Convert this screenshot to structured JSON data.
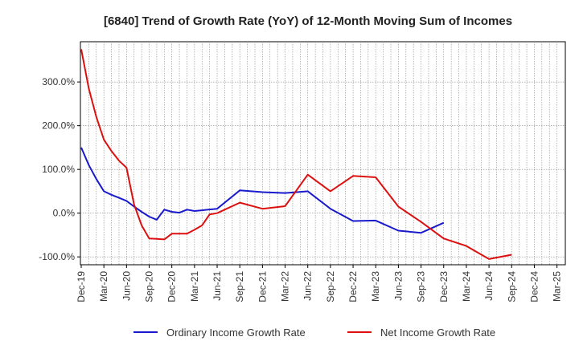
{
  "chart_data": {
    "type": "line",
    "title": "[6840]  Trend of Growth Rate (YoY) of 12-Month Moving Sum of Incomes",
    "xlabel": "",
    "ylabel": "",
    "x_tick_labels": [
      "Dec-19",
      "Mar-20",
      "Jun-20",
      "Sep-20",
      "Dec-20",
      "Mar-21",
      "Jun-21",
      "Sep-21",
      "Dec-21",
      "Mar-22",
      "Jun-22",
      "Sep-22",
      "Dec-22",
      "Mar-23",
      "Jun-23",
      "Sep-23",
      "Dec-23",
      "Mar-24",
      "Jun-24",
      "Sep-24",
      "Dec-24",
      "Mar-25"
    ],
    "y_ticks": [
      {
        "value": 300,
        "label": "300.0%"
      },
      {
        "value": 200,
        "label": "200.0%"
      },
      {
        "value": 100,
        "label": "100.0%"
      },
      {
        "value": 0,
        "label": "0.0%"
      },
      {
        "value": -100,
        "label": "-100.0%"
      }
    ],
    "ylim": [
      -118,
      392
    ],
    "x_range_months": [
      0,
      64
    ],
    "grid": true,
    "legend_position": "bottom",
    "series": [
      {
        "name": "Ordinary Income Growth Rate",
        "color": "#1a1acd",
        "x": [
          0,
          1,
          2,
          3,
          4,
          5,
          6,
          7,
          8,
          9,
          10,
          11,
          12,
          13,
          14,
          15,
          18,
          21,
          24,
          27,
          30,
          33,
          36,
          39,
          42,
          45,
          48,
          51,
          54,
          57,
          60
        ],
        "y": [
          150,
          110,
          78,
          50,
          42,
          35,
          28,
          15,
          3,
          -8,
          -15,
          8,
          3,
          1,
          8,
          5,
          10,
          52,
          48,
          46,
          50,
          10,
          -18,
          -17,
          -40,
          -45,
          -22,
          null,
          null,
          null,
          null
        ]
      },
      {
        "name": "Net Income Growth Rate",
        "color": "#dd1010",
        "x": [
          0,
          1,
          2,
          3,
          4,
          5,
          6,
          7,
          8,
          9,
          10,
          11,
          12,
          13,
          14,
          15,
          16,
          17,
          18,
          21,
          24,
          27,
          30,
          33,
          36,
          39,
          42,
          45,
          48,
          51,
          54,
          57,
          60
        ],
        "y": [
          375,
          285,
          220,
          168,
          142,
          120,
          104,
          20,
          -28,
          -58,
          -59,
          -60,
          -47,
          -47,
          -47,
          -38,
          -28,
          -3,
          0,
          24,
          10,
          16,
          88,
          50,
          85,
          82,
          15,
          -20,
          -58,
          -75,
          -105,
          -95,
          null
        ]
      }
    ]
  }
}
